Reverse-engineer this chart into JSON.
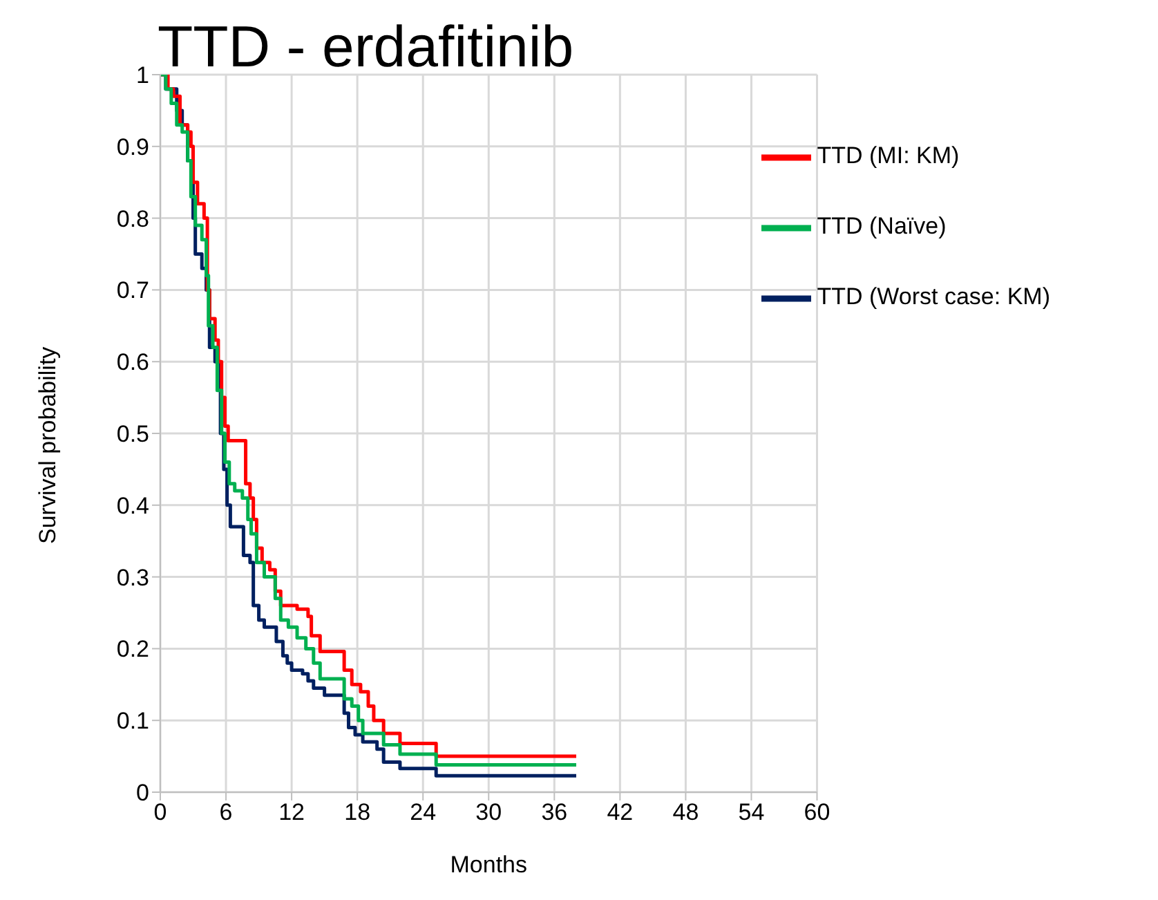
{
  "chart_data": {
    "type": "step",
    "title": "TTD - erdafitinib",
    "xlabel": "Months",
    "ylabel": "Survival probability",
    "xlim": [
      0,
      60
    ],
    "xticks": [
      0,
      6,
      12,
      18,
      24,
      30,
      36,
      42,
      48,
      54,
      60
    ],
    "ylim": [
      0,
      1
    ],
    "yticks": [
      0,
      0.1,
      0.2,
      0.3,
      0.4,
      0.5,
      0.6,
      0.7,
      0.8,
      0.9,
      1
    ],
    "grid": true,
    "legend": "top right",
    "marker": "none",
    "line_style": "solid",
    "series": [
      {
        "name": "TTD (Worst case: KM)",
        "color": "#002060",
        "x": [
          0,
          0.5,
          1.5,
          2,
          2.5,
          3,
          3.2,
          3.8,
          4.2,
          4.5,
          5,
          5.5,
          5.8,
          6.1,
          6.4,
          7.6,
          8.2,
          8.5,
          9,
          9.5,
          10.6,
          11.2,
          11.6,
          12,
          13,
          13.5,
          14,
          15,
          16.8,
          17.2,
          17.8,
          18.5,
          19.8,
          20.4,
          21.9,
          25.2,
          38
        ],
        "values": [
          1,
          0.98,
          0.95,
          0.93,
          0.88,
          0.8,
          0.75,
          0.73,
          0.7,
          0.62,
          0.6,
          0.5,
          0.45,
          0.4,
          0.37,
          0.33,
          0.32,
          0.26,
          0.24,
          0.23,
          0.21,
          0.19,
          0.18,
          0.17,
          0.165,
          0.155,
          0.145,
          0.135,
          0.11,
          0.09,
          0.08,
          0.07,
          0.06,
          0.042,
          0.033,
          0.023,
          0.023
        ]
      },
      {
        "name": "TTD (MI: KM)",
        "color": "#ff0000",
        "x": [
          0,
          0.7,
          1.2,
          1.8,
          2.5,
          2.8,
          3,
          3.4,
          4,
          4.3,
          4.5,
          5,
          5.3,
          5.6,
          5.9,
          6.2,
          7.8,
          8.2,
          8.5,
          8.8,
          9.3,
          10,
          10.5,
          11,
          12.5,
          13.5,
          13.8,
          14.6,
          16.8,
          17.5,
          18.3,
          19,
          19.5,
          20.4,
          21.9,
          25.2,
          38
        ],
        "values": [
          1,
          0.98,
          0.97,
          0.93,
          0.92,
          0.9,
          0.85,
          0.82,
          0.8,
          0.7,
          0.66,
          0.63,
          0.6,
          0.55,
          0.51,
          0.49,
          0.43,
          0.41,
          0.38,
          0.34,
          0.32,
          0.31,
          0.28,
          0.26,
          0.255,
          0.245,
          0.218,
          0.196,
          0.17,
          0.15,
          0.14,
          0.12,
          0.1,
          0.082,
          0.068,
          0.05,
          0.05
        ]
      },
      {
        "name": "TTD (Naïve)",
        "color": "#00b050",
        "x": [
          0,
          0.5,
          1,
          1.5,
          2,
          2.5,
          2.8,
          3.2,
          3.8,
          4.2,
          4.4,
          4.8,
          5.2,
          5.6,
          5.9,
          6.3,
          6.8,
          7.5,
          8,
          8.3,
          8.8,
          9.5,
          10.5,
          11,
          11.7,
          12.5,
          13.3,
          14,
          14.6,
          16.8,
          17.5,
          18.1,
          18.5,
          20.4,
          21.9,
          25.2,
          38
        ],
        "values": [
          1,
          0.98,
          0.96,
          0.93,
          0.92,
          0.88,
          0.83,
          0.79,
          0.77,
          0.72,
          0.65,
          0.62,
          0.56,
          0.5,
          0.46,
          0.43,
          0.42,
          0.41,
          0.38,
          0.36,
          0.32,
          0.3,
          0.27,
          0.24,
          0.23,
          0.215,
          0.2,
          0.18,
          0.158,
          0.13,
          0.12,
          0.1,
          0.082,
          0.066,
          0.053,
          0.038,
          0.038
        ]
      }
    ]
  }
}
